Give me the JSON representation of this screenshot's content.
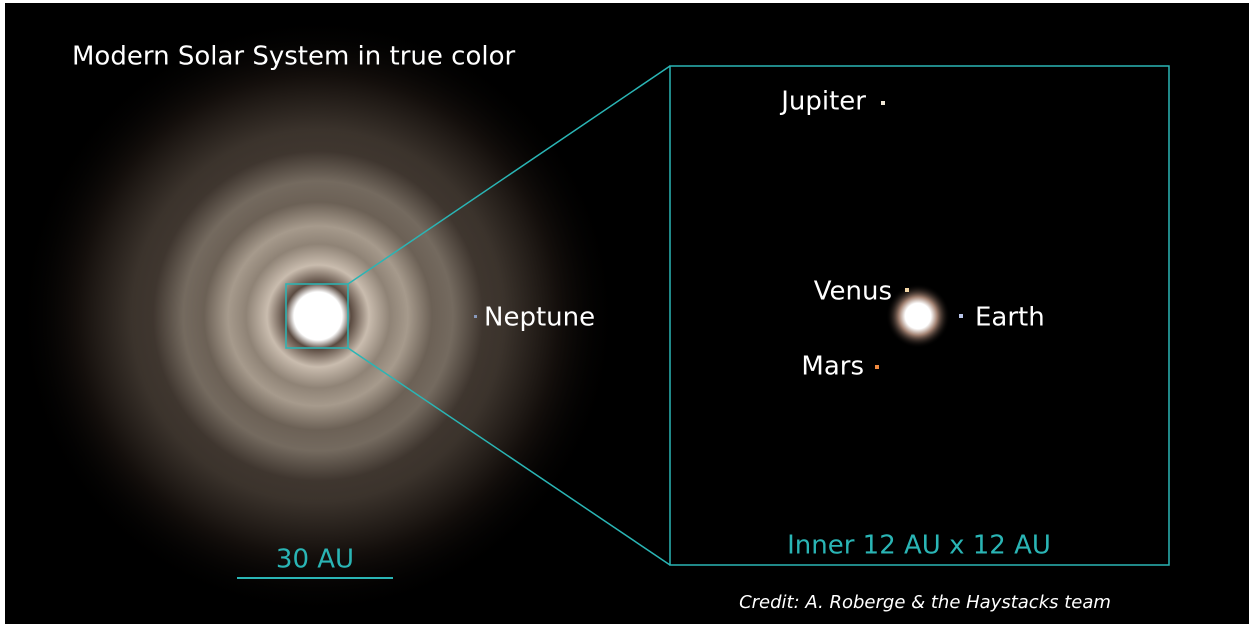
{
  "title": "Modern Solar System in true color",
  "scale_bar": {
    "label": "30 AU"
  },
  "outer_planets": [
    {
      "label": "Neptune"
    }
  ],
  "inset": {
    "label": "Inner 12 AU x 12 AU",
    "planets": [
      {
        "label": "Jupiter"
      },
      {
        "label": "Venus"
      },
      {
        "label": "Earth"
      },
      {
        "label": "Mars"
      }
    ]
  },
  "credit": "Credit: A. Roberge & the Haystacks team"
}
